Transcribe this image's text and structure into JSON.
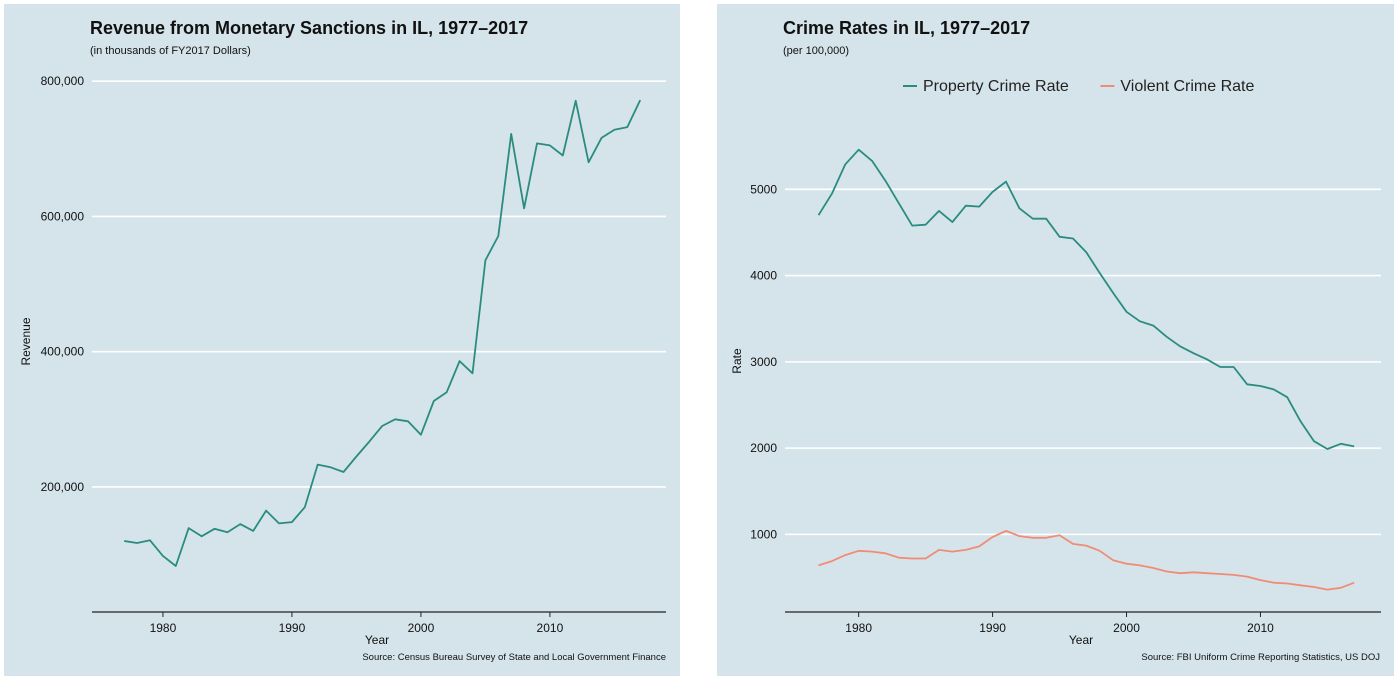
{
  "chart_data": [
    {
      "type": "line",
      "title": "Revenue from Monetary Sanctions in IL, 1977–2017",
      "subtitle": "(in thousands of FY2017 Dollars)",
      "xlabel": "Year",
      "ylabel": "Revenue",
      "source": "Source: Census Bureau Survey of State and Local Government Finance",
      "xlim": [
        1974.5,
        2019
      ],
      "ylim": [
        15000,
        815000
      ],
      "x_ticks": [
        1980,
        1990,
        2000,
        2010
      ],
      "y_ticks": [
        200000,
        400000,
        600000,
        800000
      ],
      "y_tick_labels": [
        "200,000",
        "400,000",
        "600,000",
        "800,000"
      ],
      "grid": "horizontal",
      "colors": {
        "line": "#2a8c80",
        "background": "#d5e4eb",
        "grid": "#ffffff"
      },
      "series": [
        {
          "x": [
            1977,
            1978,
            1979,
            1980,
            1981,
            1982,
            1983,
            1984,
            1985,
            1986,
            1987,
            1988,
            1989,
            1990,
            1991,
            1992,
            1993,
            1994,
            1995,
            1996,
            1997,
            1998,
            1999,
            2000,
            2001,
            2002,
            2003,
            2004,
            2005,
            2006,
            2007,
            2008,
            2009,
            2010,
            2011,
            2012,
            2013,
            2014,
            2015,
            2016,
            2017
          ],
          "values": [
            120000,
            117000,
            121000,
            98000,
            83000,
            139000,
            127000,
            138000,
            133000,
            145000,
            135000,
            165000,
            146000,
            148000,
            170000,
            233000,
            229000,
            222000,
            245000,
            267000,
            290000,
            300000,
            297000,
            277000,
            327000,
            340000,
            386000,
            368000,
            535000,
            571000,
            722000,
            612000,
            708000,
            705000,
            690000,
            771000,
            680000,
            716000,
            728000,
            732000,
            772000
          ]
        }
      ]
    },
    {
      "type": "line",
      "title": "Crime Rates in IL, 1977–2017",
      "subtitle": "(per 100,000)",
      "xlabel": "Year",
      "ylabel": "Rate",
      "source": "Source: FBI Uniform Crime Reporting Statistics, US DOJ",
      "legend": "top",
      "xlim": [
        1974.5,
        2019
      ],
      "ylim": [
        100,
        5920
      ],
      "x_ticks": [
        1980,
        1990,
        2000,
        2010
      ],
      "y_ticks": [
        1000,
        2000,
        3000,
        4000,
        5000
      ],
      "y_tick_labels": [
        "1000",
        "2000",
        "3000",
        "4000",
        "5000"
      ],
      "grid": "horizontal",
      "colors": {
        "background": "#d5e4eb",
        "grid": "#ffffff"
      },
      "x": [
        1977,
        1978,
        1979,
        1980,
        1981,
        1982,
        1983,
        1984,
        1985,
        1986,
        1987,
        1988,
        1989,
        1990,
        1991,
        1992,
        1993,
        1994,
        1995,
        1996,
        1997,
        1998,
        1999,
        2000,
        2001,
        2002,
        2003,
        2004,
        2005,
        2006,
        2007,
        2008,
        2009,
        2010,
        2011,
        2012,
        2013,
        2014,
        2015,
        2016,
        2017
      ],
      "series": [
        {
          "name": "Property Crime Rate",
          "color": "#2a8c80",
          "values": [
            4700,
            4950,
            5290,
            5460,
            5330,
            5100,
            4840,
            4580,
            4590,
            4750,
            4620,
            4810,
            4800,
            4970,
            5090,
            4780,
            4660,
            4660,
            4450,
            4430,
            4270,
            4030,
            3800,
            3580,
            3470,
            3420,
            3290,
            3180,
            3100,
            3030,
            2940,
            2940,
            2740,
            2720,
            2680,
            2590,
            2310,
            2080,
            1990,
            2050,
            2020
          ]
        },
        {
          "name": "Violent Crime Rate",
          "color": "#f08c76",
          "values": [
            640,
            690,
            760,
            810,
            800,
            780,
            730,
            720,
            720,
            820,
            800,
            820,
            860,
            970,
            1040,
            980,
            960,
            960,
            990,
            890,
            870,
            810,
            700,
            660,
            640,
            610,
            570,
            550,
            560,
            550,
            540,
            530,
            510,
            470,
            440,
            430,
            410,
            390,
            360,
            380,
            440
          ]
        }
      ]
    }
  ]
}
